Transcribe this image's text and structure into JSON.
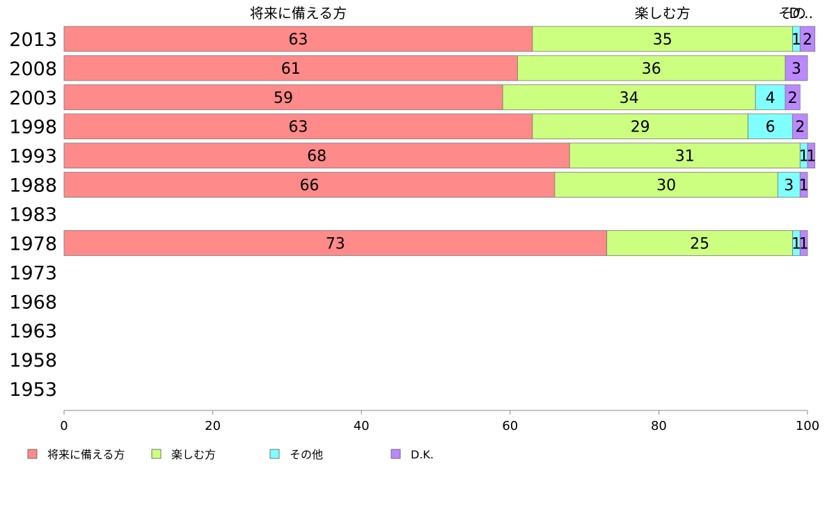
{
  "chart_data": {
    "type": "bar",
    "orientation": "horizontal",
    "stacked": true,
    "categories": [
      "2013",
      "2008",
      "2003",
      "1998",
      "1993",
      "1988",
      "1983",
      "1978",
      "1973",
      "1968",
      "1963",
      "1958",
      "1953"
    ],
    "series": [
      {
        "name": "将来に備える方",
        "color": "#ff8a8a",
        "values": [
          63,
          61,
          59,
          63,
          68,
          66,
          null,
          73,
          null,
          null,
          null,
          null,
          null
        ]
      },
      {
        "name": "楽しむ方",
        "color": "#ccff80",
        "values": [
          35,
          36,
          34,
          29,
          31,
          30,
          null,
          25,
          null,
          null,
          null,
          null,
          null
        ]
      },
      {
        "name": "その他",
        "color": "#80ffff",
        "values": [
          1,
          0,
          4,
          6,
          1,
          3,
          null,
          1,
          null,
          null,
          null,
          null,
          null
        ]
      },
      {
        "name": "D.K.",
        "color": "#bb88ff",
        "values": [
          2,
          3,
          2,
          2,
          1,
          1,
          null,
          1,
          null,
          null,
          null,
          null,
          null
        ]
      }
    ],
    "top_labels": [
      "将来に備える方",
      "楽しむ方",
      "その他",
      "D.K."
    ],
    "xlim": [
      0,
      100
    ],
    "xticks": [
      0,
      20,
      40,
      60,
      80,
      100
    ],
    "xlabel": "",
    "ylabel": "",
    "title": "",
    "legend_position": "bottom-left",
    "grid": false
  }
}
